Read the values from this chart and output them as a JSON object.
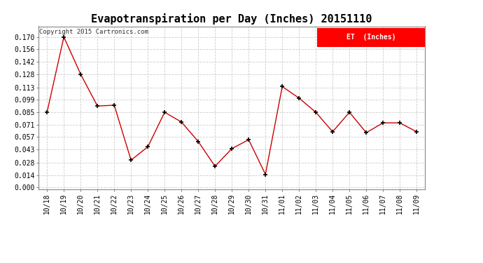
{
  "title": "Evapotranspiration per Day (Inches) 20151110",
  "copyright_text": "Copyright 2015 Cartronics.com",
  "legend_label": "ET  (Inches)",
  "legend_bg": "#ff0000",
  "legend_fg": "#ffffff",
  "x_labels": [
    "10/18",
    "10/19",
    "10/20",
    "10/21",
    "10/22",
    "10/23",
    "10/24",
    "10/25",
    "10/26",
    "10/27",
    "10/28",
    "10/29",
    "10/30",
    "10/31",
    "11/01",
    "11/02",
    "11/03",
    "11/04",
    "11/05",
    "11/06",
    "11/07",
    "11/08",
    "11/09"
  ],
  "y_values": [
    0.085,
    0.17,
    0.128,
    0.092,
    0.093,
    0.031,
    0.046,
    0.085,
    0.074,
    0.052,
    0.024,
    0.044,
    0.054,
    0.015,
    0.114,
    0.101,
    0.085,
    0.063,
    0.085,
    0.062,
    0.073,
    0.073,
    0.063
  ],
  "y_ticks": [
    0.0,
    0.014,
    0.028,
    0.043,
    0.057,
    0.071,
    0.085,
    0.099,
    0.113,
    0.128,
    0.142,
    0.156,
    0.17
  ],
  "line_color": "#cc0000",
  "marker": "+",
  "marker_color": "#000000",
  "grid_color": "#cccccc",
  "bg_color": "#ffffff",
  "title_fontsize": 11,
  "axis_fontsize": 7,
  "copyright_fontsize": 6.5
}
